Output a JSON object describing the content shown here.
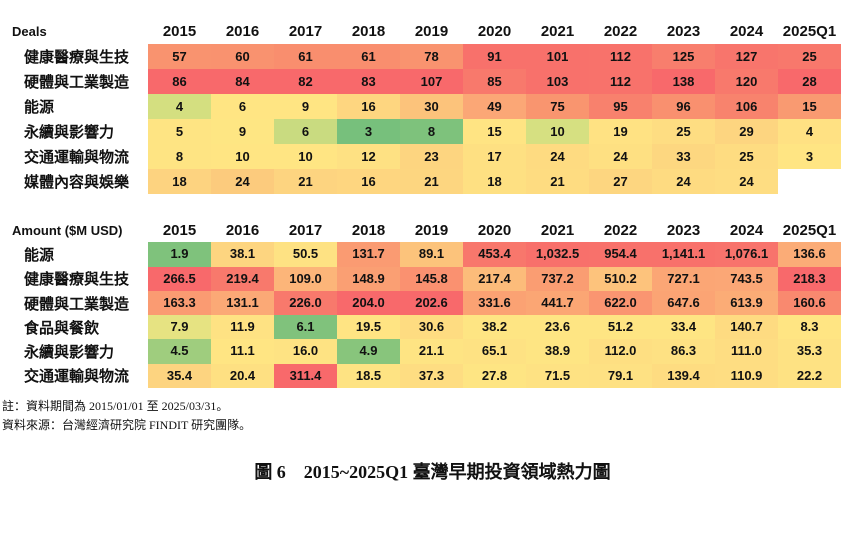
{
  "chart_data": [
    {
      "type": "heatmap",
      "title": "Deals",
      "categories": [
        "2015",
        "2016",
        "2017",
        "2018",
        "2019",
        "2020",
        "2021",
        "2022",
        "2023",
        "2024",
        "2025Q1"
      ],
      "rows": [
        {
          "label": "健康醫療與生技",
          "values": [
            57,
            60,
            61,
            61,
            78,
            91,
            101,
            112,
            125,
            127,
            25
          ],
          "colors": [
            "#f9936f",
            "#f9926f",
            "#f98e6e",
            "#f98e6e",
            "#f9936f",
            "#f8716b",
            "#f8716b",
            "#f8726b",
            "#f87e6d",
            "#f8756c",
            "#f8786c"
          ]
        },
        {
          "label": "硬體與工業製造",
          "values": [
            86,
            84,
            82,
            83,
            107,
            85,
            103,
            112,
            138,
            120,
            28
          ],
          "colors": [
            "#f8696b",
            "#f8696b",
            "#f8696b",
            "#f8696b",
            "#f8696b",
            "#f8796c",
            "#f8716b",
            "#f8726b",
            "#f8696b",
            "#f8796c",
            "#f8696b"
          ]
        },
        {
          "label": "能源",
          "values": [
            4,
            6,
            9,
            16,
            30,
            49,
            75,
            95,
            96,
            106,
            15
          ],
          "colors": [
            "#d4df80",
            "#ffe583",
            "#ffe583",
            "#fed680",
            "#fcc37b",
            "#fba776",
            "#f9956f",
            "#f8816d",
            "#f9906f",
            "#f8836d",
            "#f99a71"
          ]
        },
        {
          "label": "永續與影響力",
          "values": [
            5,
            9,
            6,
            3,
            8,
            15,
            10,
            19,
            25,
            29,
            4
          ],
          "colors": [
            "#fee483",
            "#fee683",
            "#c9db80",
            "#77c07c",
            "#7ec27c",
            "#ffe483",
            "#d6e081",
            "#ffe283",
            "#fedd82",
            "#fdd580",
            "#ffe183"
          ]
        },
        {
          "label": "交通運輸與物流",
          "values": [
            8,
            10,
            10,
            12,
            23,
            17,
            24,
            24,
            33,
            25,
            3
          ],
          "colors": [
            "#fee483",
            "#ffe583",
            "#ffe583",
            "#fee183",
            "#fdd580",
            "#fee082",
            "#fedb81",
            "#fee082",
            "#fdd780",
            "#fedc81",
            "#ffe583"
          ]
        },
        {
          "label": "媒體內容與娛樂",
          "values": [
            18,
            24,
            21,
            16,
            21,
            18,
            21,
            27,
            24,
            24,
            null
          ],
          "colors": [
            "#fdd380",
            "#fccb7d",
            "#fdd480",
            "#fed680",
            "#fdd680",
            "#fee082",
            "#fedc81",
            "#fdd680",
            "#fedb81",
            "#fedd82",
            null
          ]
        }
      ]
    },
    {
      "type": "heatmap",
      "title": "Amount ($M USD)",
      "categories": [
        "2015",
        "2016",
        "2017",
        "2018",
        "2019",
        "2020",
        "2021",
        "2022",
        "2023",
        "2024",
        "2025Q1"
      ],
      "rows": [
        {
          "label": "能源",
          "values": [
            "1.9",
            "38.1",
            "50.5",
            "131.7",
            "89.1",
            "453.4",
            "1,032.5",
            "954.4",
            "1,141.1",
            "1,076.1",
            "136.6"
          ],
          "colors": [
            "#7fc27c",
            "#fdd580",
            "#fee283",
            "#fa9b72",
            "#fcc37b",
            "#f8776c",
            "#f8706b",
            "#f8716b",
            "#f8716b",
            "#f8736c",
            "#fbac77"
          ]
        },
        {
          "label": "健康醫療與生技",
          "values": [
            "266.5",
            "219.4",
            "109.0",
            "148.9",
            "145.8",
            "217.4",
            "737.2",
            "510.2",
            "727.1",
            "743.5",
            "218.3"
          ],
          "colors": [
            "#f8696b",
            "#f8796c",
            "#fcb579",
            "#fa9f73",
            "#fa9170",
            "#fcbc7a",
            "#fa9d72",
            "#fdc37c",
            "#fba675",
            "#fba776",
            "#f8696b"
          ]
        },
        {
          "label": "硬體與工業製造",
          "values": [
            "163.3",
            "131.1",
            "226.0",
            "204.0",
            "202.6",
            "331.6",
            "441.7",
            "622.0",
            "647.6",
            "613.9",
            "160.6"
          ],
          "colors": [
            "#fa9b72",
            "#fba976",
            "#f8796c",
            "#f8696b",
            "#f8696b",
            "#fba273",
            "#fba674",
            "#fa9571",
            "#fba474",
            "#fbac76",
            "#f9896f"
          ]
        },
        {
          "label": "食品與餐飲",
          "values": [
            "7.9",
            "11.9",
            "6.1",
            "19.5",
            "30.6",
            "38.2",
            "23.6",
            "51.2",
            "33.4",
            "140.7",
            "8.3"
          ],
          "colors": [
            "#e6e382",
            "#fee283",
            "#80c27c",
            "#ffe483",
            "#fedc81",
            "#fee583",
            "#fee583",
            "#fee583",
            "#fee583",
            "#fedb81",
            "#ffe583"
          ]
        },
        {
          "label": "永續與影響力",
          "values": [
            "4.5",
            "11.1",
            "16.0",
            "4.9",
            "21.1",
            "65.1",
            "38.9",
            "112.0",
            "86.3",
            "111.0",
            "35.3"
          ],
          "colors": [
            "#9fcd7e",
            "#ffe583",
            "#fee383",
            "#88c57c",
            "#fee483",
            "#fee283",
            "#fee583",
            "#fedf82",
            "#fee183",
            "#fedd82",
            "#fee283"
          ]
        },
        {
          "label": "交通運輸與物流",
          "values": [
            "35.4",
            "20.4",
            "311.4",
            "18.5",
            "37.3",
            "27.8",
            "71.5",
            "79.1",
            "139.4",
            "110.9",
            "22.2"
          ],
          "colors": [
            "#fdd480",
            "#fee082",
            "#f8696b",
            "#fee383",
            "#fedd82",
            "#fee583",
            "#fee283",
            "#fee183",
            "#fedc81",
            "#fedd82",
            "#fee283"
          ]
        }
      ]
    }
  ],
  "notes": {
    "period": "註：資料期間為 2015/01/01 至 2025/03/31。",
    "source": "資料來源：台灣經濟研究院 FINDIT 研究團隊。"
  },
  "caption": "圖 6　2015~2025Q1 臺灣早期投資領域熱力圖"
}
